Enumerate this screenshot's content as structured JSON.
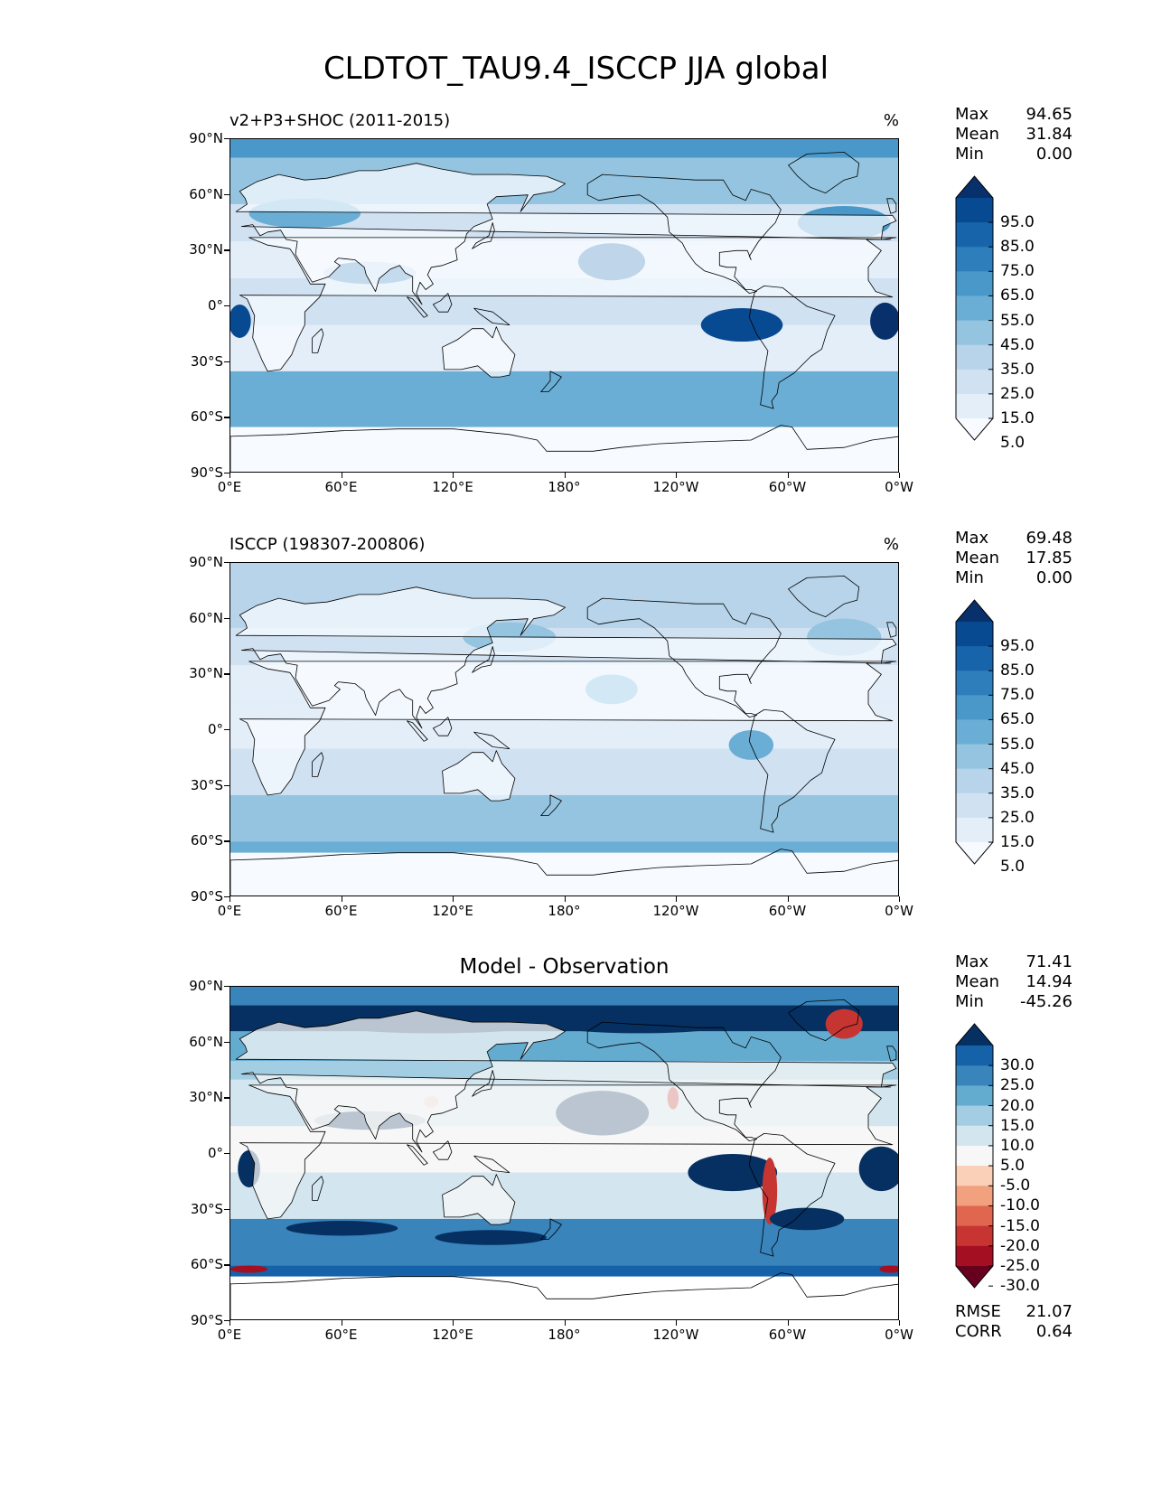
{
  "title": "CLDTOT_TAU9.4_ISCCP JJA global",
  "lat_ticks": [
    "90°N",
    "60°N",
    "30°N",
    "0°",
    "30°S",
    "60°S",
    "90°S"
  ],
  "lon_ticks": [
    "0°E",
    "60°E",
    "120°E",
    "180°",
    "120°W",
    "60°W",
    "0°W"
  ],
  "colors": {
    "blues": [
      "#f7fbff",
      "#e3eef8",
      "#d0e1f2",
      "#b7d4ea",
      "#94c4df",
      "#6aaed6",
      "#4a98c9",
      "#2e7ebc",
      "#1764ab",
      "#084a91",
      "#08306b"
    ],
    "diverging": [
      "#67001f",
      "#a50f22",
      "#c63532",
      "#e0664f",
      "#f2a17f",
      "#fbd0b9",
      "#f7f7f7",
      "#d3e6f0",
      "#a3cde3",
      "#64abd0",
      "#3884bb",
      "#1662a9",
      "#053061"
    ]
  },
  "panels": [
    {
      "title": "v2+P3+SHOC (2011-2015)",
      "units": "%",
      "stats": {
        "max_label": "Max",
        "max": "94.65",
        "mean_label": "Mean",
        "mean": "31.84",
        "min_label": "Min",
        "min": "0.00"
      },
      "colorbar_levels": [
        "95.0",
        "85.0",
        "75.0",
        "65.0",
        "55.0",
        "45.0",
        "35.0",
        "25.0",
        "15.0",
        "5.0"
      ]
    },
    {
      "title": "ISCCP (198307-200806)",
      "units": "%",
      "stats": {
        "max_label": "Max",
        "max": "69.48",
        "mean_label": "Mean",
        "mean": "17.85",
        "min_label": "Min",
        "min": "0.00"
      },
      "colorbar_levels": [
        "95.0",
        "85.0",
        "75.0",
        "65.0",
        "55.0",
        "45.0",
        "35.0",
        "25.0",
        "15.0",
        "5.0"
      ]
    },
    {
      "title": "Model - Observation",
      "stats": {
        "max_label": "Max",
        "max": "71.41",
        "mean_label": "Mean",
        "mean": "14.94",
        "min_label": "Min",
        "min": "-45.26"
      },
      "colorbar_levels": [
        "30.0",
        "25.0",
        "20.0",
        "15.0",
        "10.0",
        "5.0",
        "-5.0",
        "-10.0",
        "-15.0",
        "-20.0",
        "-25.0",
        "-30.0"
      ],
      "metrics": {
        "rmse_label": "RMSE",
        "rmse": "21.07",
        "corr_label": "CORR",
        "corr": "0.64"
      }
    }
  ]
}
